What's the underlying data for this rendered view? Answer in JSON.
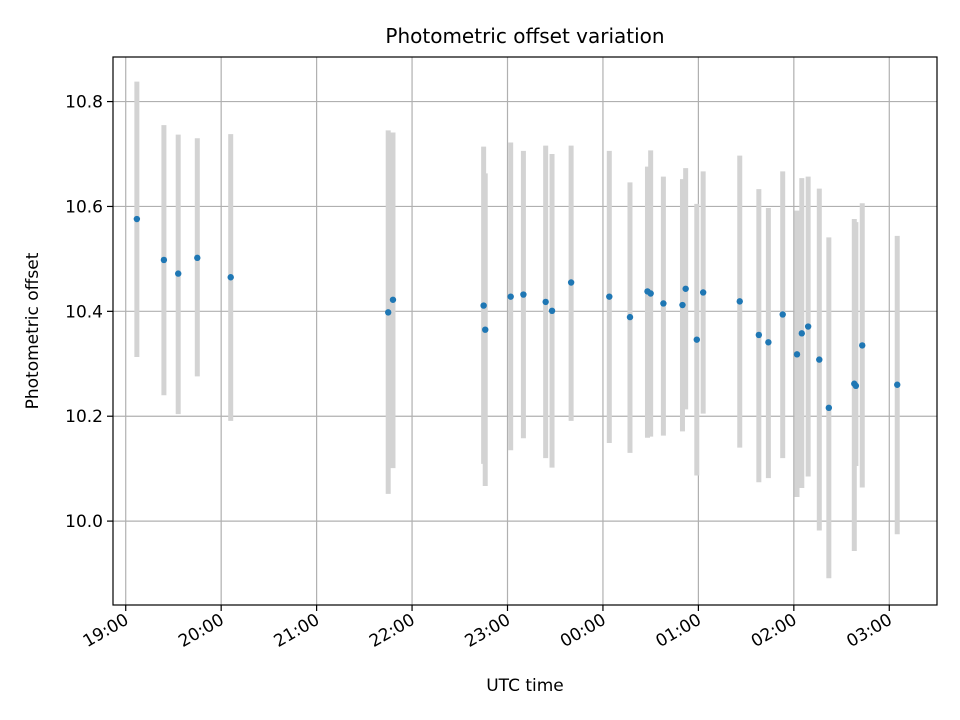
{
  "chart_data": {
    "type": "scatter",
    "title": "Photometric offset variation",
    "xlabel": "UTC time",
    "ylabel": "Photometric offset",
    "xlim": [
      "18:52",
      "03:30"
    ],
    "ylim": [
      9.84,
      10.885
    ],
    "grid": true,
    "x_ticks": [
      "19:00",
      "20:00",
      "21:00",
      "22:00",
      "23:00",
      "00:00",
      "01:00",
      "02:00",
      "03:00"
    ],
    "y_ticks": [
      "10.0",
      "10.2",
      "10.4",
      "10.6",
      "10.8"
    ],
    "marker_color": "#1f77b4",
    "errorbar_color": "#d3d3d3",
    "points": [
      {
        "t": "19:07",
        "y": 10.576,
        "lo": 10.313,
        "hi": 10.838
      },
      {
        "t": "19:24",
        "y": 10.498,
        "lo": 10.24,
        "hi": 10.755
      },
      {
        "t": "19:33",
        "y": 10.472,
        "lo": 10.204,
        "hi": 10.737
      },
      {
        "t": "19:45",
        "y": 10.502,
        "lo": 10.276,
        "hi": 10.73
      },
      {
        "t": "20:06",
        "y": 10.465,
        "lo": 10.191,
        "hi": 10.738
      },
      {
        "t": "21:45",
        "y": 10.398,
        "lo": 10.052,
        "hi": 10.745
      },
      {
        "t": "21:48",
        "y": 10.422,
        "lo": 10.101,
        "hi": 10.741
      },
      {
        "t": "22:45",
        "y": 10.411,
        "lo": 10.109,
        "hi": 10.714
      },
      {
        "t": "22:46",
        "y": 10.365,
        "lo": 10.067,
        "hi": 10.663
      },
      {
        "t": "23:02",
        "y": 10.428,
        "lo": 10.135,
        "hi": 10.722
      },
      {
        "t": "23:10",
        "y": 10.432,
        "lo": 10.158,
        "hi": 10.706
      },
      {
        "t": "23:24",
        "y": 10.418,
        "lo": 10.12,
        "hi": 10.716
      },
      {
        "t": "23:28",
        "y": 10.401,
        "lo": 10.102,
        "hi": 10.7
      },
      {
        "t": "23:40",
        "y": 10.455,
        "lo": 10.191,
        "hi": 10.716
      },
      {
        "t": "00:04",
        "y": 10.428,
        "lo": 10.149,
        "hi": 10.706
      },
      {
        "t": "00:17",
        "y": 10.389,
        "lo": 10.13,
        "hi": 10.646
      },
      {
        "t": "00:28",
        "y": 10.438,
        "lo": 10.159,
        "hi": 10.676
      },
      {
        "t": "00:30",
        "y": 10.434,
        "lo": 10.161,
        "hi": 10.707
      },
      {
        "t": "00:38",
        "y": 10.415,
        "lo": 10.163,
        "hi": 10.657
      },
      {
        "t": "00:50",
        "y": 10.412,
        "lo": 10.171,
        "hi": 10.652
      },
      {
        "t": "00:52",
        "y": 10.443,
        "lo": 10.213,
        "hi": 10.673
      },
      {
        "t": "00:59",
        "y": 10.346,
        "lo": 10.087,
        "hi": 10.605
      },
      {
        "t": "01:03",
        "y": 10.436,
        "lo": 10.205,
        "hi": 10.667
      },
      {
        "t": "01:26",
        "y": 10.419,
        "lo": 10.14,
        "hi": 10.697
      },
      {
        "t": "01:38",
        "y": 10.355,
        "lo": 10.074,
        "hi": 10.633
      },
      {
        "t": "01:44",
        "y": 10.341,
        "lo": 10.082,
        "hi": 10.597
      },
      {
        "t": "01:53",
        "y": 10.394,
        "lo": 10.12,
        "hi": 10.667
      },
      {
        "t": "02:02",
        "y": 10.318,
        "lo": 10.046,
        "hi": 10.592
      },
      {
        "t": "02:05",
        "y": 10.358,
        "lo": 10.063,
        "hi": 10.654
      },
      {
        "t": "02:09",
        "y": 10.371,
        "lo": 10.085,
        "hi": 10.657
      },
      {
        "t": "02:16",
        "y": 10.308,
        "lo": 9.982,
        "hi": 10.634
      },
      {
        "t": "02:22",
        "y": 10.216,
        "lo": 9.891,
        "hi": 10.541
      },
      {
        "t": "02:38",
        "y": 10.262,
        "lo": 9.943,
        "hi": 10.576
      },
      {
        "t": "02:39",
        "y": 10.258,
        "lo": 10.105,
        "hi": 10.57
      },
      {
        "t": "02:43",
        "y": 10.335,
        "lo": 10.064,
        "hi": 10.606
      },
      {
        "t": "03:05",
        "y": 10.26,
        "lo": 9.975,
        "hi": 10.544
      }
    ]
  }
}
